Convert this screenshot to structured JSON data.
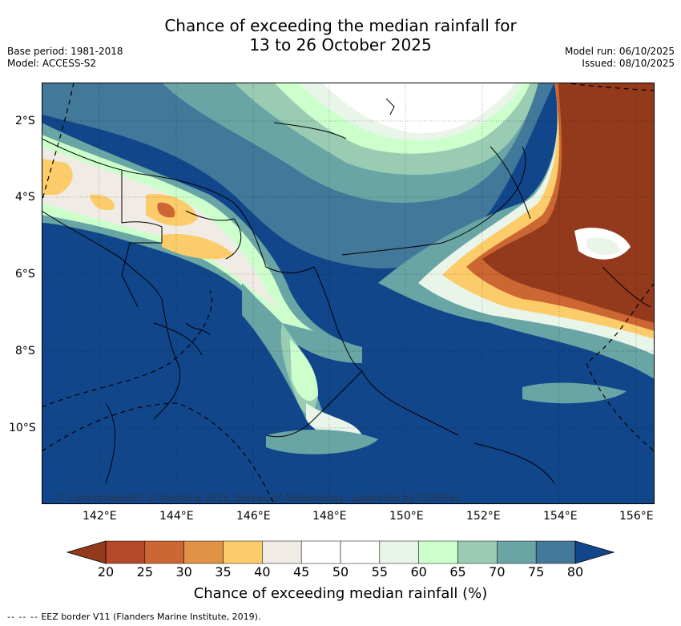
{
  "title": {
    "line1": "Chance of exceeding the median rainfall for",
    "line2": "13 to 26 October 2025"
  },
  "meta": {
    "base_period": "Base period: 1981-2018",
    "model": "Model: ACCESS-S2",
    "model_run": "Model run: 06/10/2025",
    "issued": "Issued: 08/10/2025"
  },
  "axes": {
    "lat_labels": [
      "2°S",
      "4°S",
      "6°S",
      "8°S",
      "10°S"
    ],
    "lon_labels": [
      "142°E",
      "144°E",
      "146°E",
      "148°E",
      "150°E",
      "152°E",
      "154°E",
      "156°E"
    ]
  },
  "copyright": "© Commonwealth of Australia 2025, Bureau of Meteorology, supported by COSPPac",
  "colorbar": {
    "title": "Chance of exceeding median rainfall (%)",
    "labels": [
      "20",
      "25",
      "30",
      "35",
      "40",
      "45",
      "50",
      "55",
      "60",
      "65",
      "70",
      "75",
      "80"
    ],
    "colors": [
      "#933a1c",
      "#b5482a",
      "#cc6633",
      "#e09346",
      "#fdcc6a",
      "#f0ebe5",
      "#ffffff",
      "#ffffff",
      "#e9f5e9",
      "#ccffcc",
      "#99ccb3",
      "#6aa5a5",
      "#427899",
      "#12468a"
    ],
    "low_color": "#933a1c",
    "high_color": "#12468a"
  },
  "legend": {
    "text": "EEZ border V11 (Flanders Marine Institute, 2019)."
  },
  "colors": {
    "ocean_high": "#12468a",
    "land_line": "#000000"
  }
}
